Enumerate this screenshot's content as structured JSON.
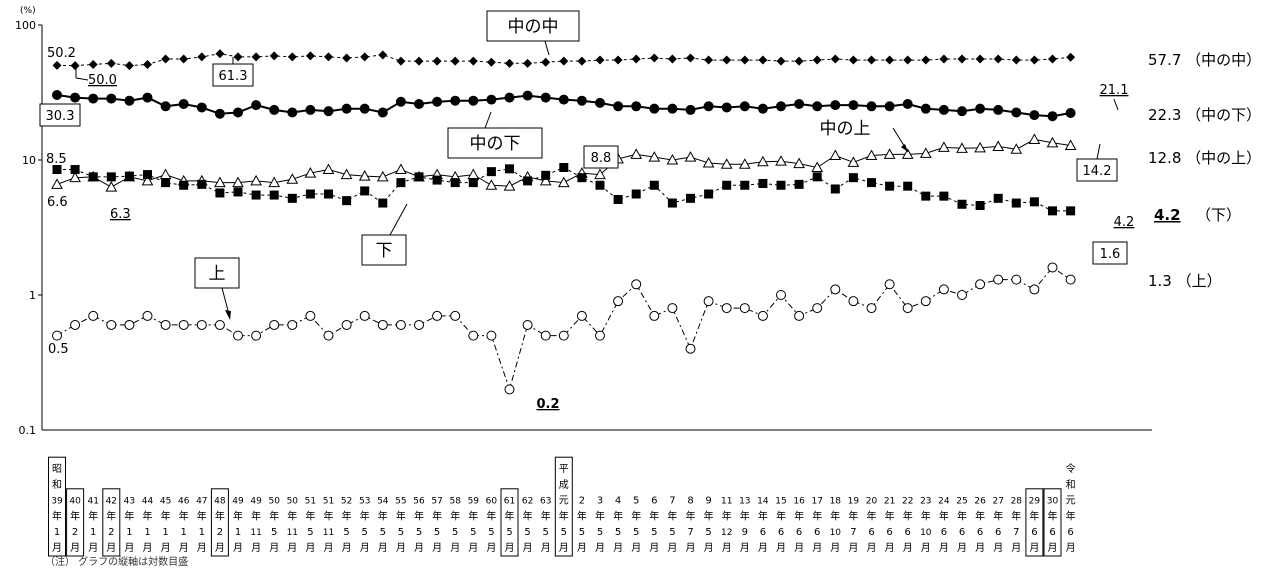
{
  "chart_data": {
    "type": "line",
    "yscale": "log",
    "ylim": [
      0.1,
      100
    ],
    "yunit": "(%)",
    "yticks": [
      "0.1",
      "1",
      "10",
      "100"
    ],
    "categories": [
      [
        "昭",
        "和",
        "39",
        "年",
        "1",
        "月"
      ],
      [
        "40",
        "年",
        "2",
        "月"
      ],
      [
        "41",
        "年",
        "1",
        "月"
      ],
      [
        "42",
        "年",
        "2",
        "月"
      ],
      [
        "43",
        "年",
        "1",
        "月"
      ],
      [
        "44",
        "年",
        "1",
        "月"
      ],
      [
        "45",
        "年",
        "1",
        "月"
      ],
      [
        "46",
        "年",
        "1",
        "月"
      ],
      [
        "47",
        "年",
        "1",
        "月"
      ],
      [
        "48",
        "年",
        "2",
        "月"
      ],
      [
        "49",
        "年",
        "1",
        "月"
      ],
      [
        "49",
        "年",
        "11",
        "月"
      ],
      [
        "50",
        "年",
        "5",
        "月"
      ],
      [
        "50",
        "年",
        "11",
        "月"
      ],
      [
        "51",
        "年",
        "5",
        "月"
      ],
      [
        "51",
        "年",
        "11",
        "月"
      ],
      [
        "52",
        "年",
        "5",
        "月"
      ],
      [
        "53",
        "年",
        "5",
        "月"
      ],
      [
        "54",
        "年",
        "5",
        "月"
      ],
      [
        "55",
        "年",
        "5",
        "月"
      ],
      [
        "56",
        "年",
        "5",
        "月"
      ],
      [
        "57",
        "年",
        "5",
        "月"
      ],
      [
        "58",
        "年",
        "5",
        "月"
      ],
      [
        "59",
        "年",
        "5",
        "月"
      ],
      [
        "60",
        "年",
        "5",
        "月"
      ],
      [
        "61",
        "年",
        "5",
        "月"
      ],
      [
        "62",
        "年",
        "5",
        "月"
      ],
      [
        "63",
        "年",
        "5",
        "月"
      ],
      [
        "平",
        "成",
        "元",
        "年",
        "5",
        "月"
      ],
      [
        "2",
        "年",
        "5",
        "月"
      ],
      [
        "3",
        "年",
        "5",
        "月"
      ],
      [
        "4",
        "年",
        "5",
        "月"
      ],
      [
        "5",
        "年",
        "5",
        "月"
      ],
      [
        "6",
        "年",
        "5",
        "月"
      ],
      [
        "7",
        "年",
        "5",
        "月"
      ],
      [
        "8",
        "年",
        "7",
        "月"
      ],
      [
        "9",
        "年",
        "5",
        "月"
      ],
      [
        "11",
        "年",
        "12",
        "月"
      ],
      [
        "13",
        "年",
        "9",
        "月"
      ],
      [
        "14",
        "年",
        "6",
        "月"
      ],
      [
        "15",
        "年",
        "6",
        "月"
      ],
      [
        "16",
        "年",
        "6",
        "月"
      ],
      [
        "17",
        "年",
        "6",
        "月"
      ],
      [
        "18",
        "年",
        "10",
        "月"
      ],
      [
        "19",
        "年",
        "7",
        "月"
      ],
      [
        "20",
        "年",
        "6",
        "月"
      ],
      [
        "21",
        "年",
        "6",
        "月"
      ],
      [
        "22",
        "年",
        "6",
        "月"
      ],
      [
        "23",
        "年",
        "10",
        "月"
      ],
      [
        "24",
        "年",
        "6",
        "月"
      ],
      [
        "25",
        "年",
        "6",
        "月"
      ],
      [
        "26",
        "年",
        "6",
        "月"
      ],
      [
        "27",
        "年",
        "6",
        "月"
      ],
      [
        "28",
        "年",
        "7",
        "月"
      ],
      [
        "29",
        "年",
        "6",
        "月"
      ],
      [
        "30",
        "年",
        "6",
        "月"
      ],
      [
        "令",
        "和",
        "元",
        "年",
        "6",
        "月"
      ]
    ],
    "boxed_categories": [
      0,
      1,
      3,
      9,
      25,
      28,
      54,
      55
    ],
    "series": [
      {
        "key": "naka_naka",
        "values": [
          50.2,
          50.0,
          51,
          52,
          50,
          51,
          56,
          56,
          58,
          61.3,
          58,
          58,
          59,
          58,
          59,
          58,
          57,
          58,
          60,
          54,
          54,
          54,
          54,
          54,
          53,
          52,
          52,
          53,
          54,
          54,
          55,
          55,
          56,
          57,
          56,
          57,
          55,
          55,
          55,
          55,
          54,
          54,
          55,
          56,
          55,
          55,
          55,
          55,
          55,
          56,
          56,
          56,
          56,
          55,
          55,
          56,
          57.7
        ]
      },
      {
        "key": "naka_shita",
        "values": [
          30.3,
          29,
          28.5,
          28.5,
          27.5,
          29,
          25,
          26,
          24.5,
          22,
          22.5,
          25.5,
          23.5,
          22.5,
          23.5,
          23,
          24,
          24,
          22.5,
          27,
          26,
          27,
          27.5,
          27.5,
          28,
          29,
          30,
          29,
          28,
          27.5,
          26.5,
          25,
          25,
          24,
          24,
          23.5,
          25,
          24.5,
          25,
          24,
          25,
          26,
          25,
          25.5,
          25.5,
          25,
          25,
          26,
          24,
          23.5,
          23,
          24,
          23.5,
          22.5,
          21.5,
          21.1,
          22.3
        ]
      },
      {
        "key": "naka_ue",
        "values": [
          6.6,
          7.4,
          7.5,
          6.3,
          7.5,
          7.0,
          7.8,
          7.0,
          7.0,
          6.8,
          6.8,
          7.0,
          6.8,
          7.2,
          8.0,
          8.5,
          7.8,
          7.6,
          7.5,
          8.5,
          7.5,
          7.8,
          7.5,
          7.8,
          6.5,
          6.4,
          7.5,
          7.0,
          6.8,
          8.0,
          7.8,
          10.2,
          11.0,
          10.5,
          10.0,
          10.5,
          9.5,
          9.3,
          9.3,
          9.7,
          9.8,
          9.4,
          8.8,
          10.8,
          9.6,
          10.8,
          11.0,
          11.0,
          11.2,
          12.4,
          12.2,
          12.3,
          12.6,
          12.0,
          14.2,
          13.4,
          12.8
        ]
      },
      {
        "key": "shita",
        "values": [
          8.5,
          8.5,
          7.5,
          7.5,
          7.6,
          7.8,
          6.8,
          6.5,
          6.6,
          5.7,
          5.8,
          5.5,
          5.5,
          5.2,
          5.6,
          5.6,
          5.0,
          5.9,
          4.8,
          6.8,
          7.5,
          7.1,
          6.8,
          6.8,
          8.2,
          8.6,
          7.0,
          7.7,
          8.8,
          7.4,
          6.5,
          5.1,
          5.6,
          6.5,
          4.8,
          5.2,
          5.6,
          6.5,
          6.5,
          6.7,
          6.5,
          6.6,
          7.5,
          6.1,
          7.4,
          6.8,
          6.4,
          6.4,
          5.4,
          5.4,
          4.7,
          4.6,
          5.2,
          4.8,
          4.9,
          4.2,
          4.2
        ]
      },
      {
        "key": "ue",
        "values": [
          0.5,
          0.6,
          0.7,
          0.6,
          0.6,
          0.7,
          0.6,
          0.6,
          0.6,
          0.6,
          0.5,
          0.5,
          0.6,
          0.6,
          0.7,
          0.5,
          0.6,
          0.7,
          0.6,
          0.6,
          0.6,
          0.7,
          0.7,
          0.5,
          0.5,
          0.2,
          0.6,
          0.5,
          0.5,
          0.7,
          0.5,
          0.9,
          1.2,
          0.7,
          0.8,
          0.4,
          0.9,
          0.8,
          0.8,
          0.7,
          1.0,
          0.7,
          0.8,
          1.1,
          0.9,
          0.8,
          1.2,
          0.8,
          0.9,
          1.1,
          1.0,
          1.2,
          1.3,
          1.3,
          1.1,
          1.6,
          1.3
        ]
      }
    ],
    "boxed_titles": {
      "naka_naka": "中の中",
      "naka_shita": "中の下",
      "naka_ue": "中の上",
      "shita": "下",
      "ue": "上"
    },
    "end_labels": {
      "naka_naka": "57.7 （中の中）",
      "naka_shita": "22.3 （中の下）",
      "naka_ue": "12.8 （中の上）",
      "shita_value": "4.2",
      "shita_name": "（下）",
      "ue": "1.3 （上）"
    },
    "value_labels": {
      "v50_2": "50.2",
      "v50_0": "50.0",
      "v61_3": "61.3",
      "v30_3": "30.3",
      "v21_1": "21.1",
      "v8_5": "8.5",
      "v6_6": "6.6",
      "v6_3": "6.3",
      "v8_8": "8.8",
      "v14_2": "14.2",
      "v4_2": "4.2",
      "v0_5": "0.5",
      "v0_2": "0.2",
      "v1_6": "1.6"
    }
  },
  "note": "（注） グラフの縦軸は対数目盛"
}
